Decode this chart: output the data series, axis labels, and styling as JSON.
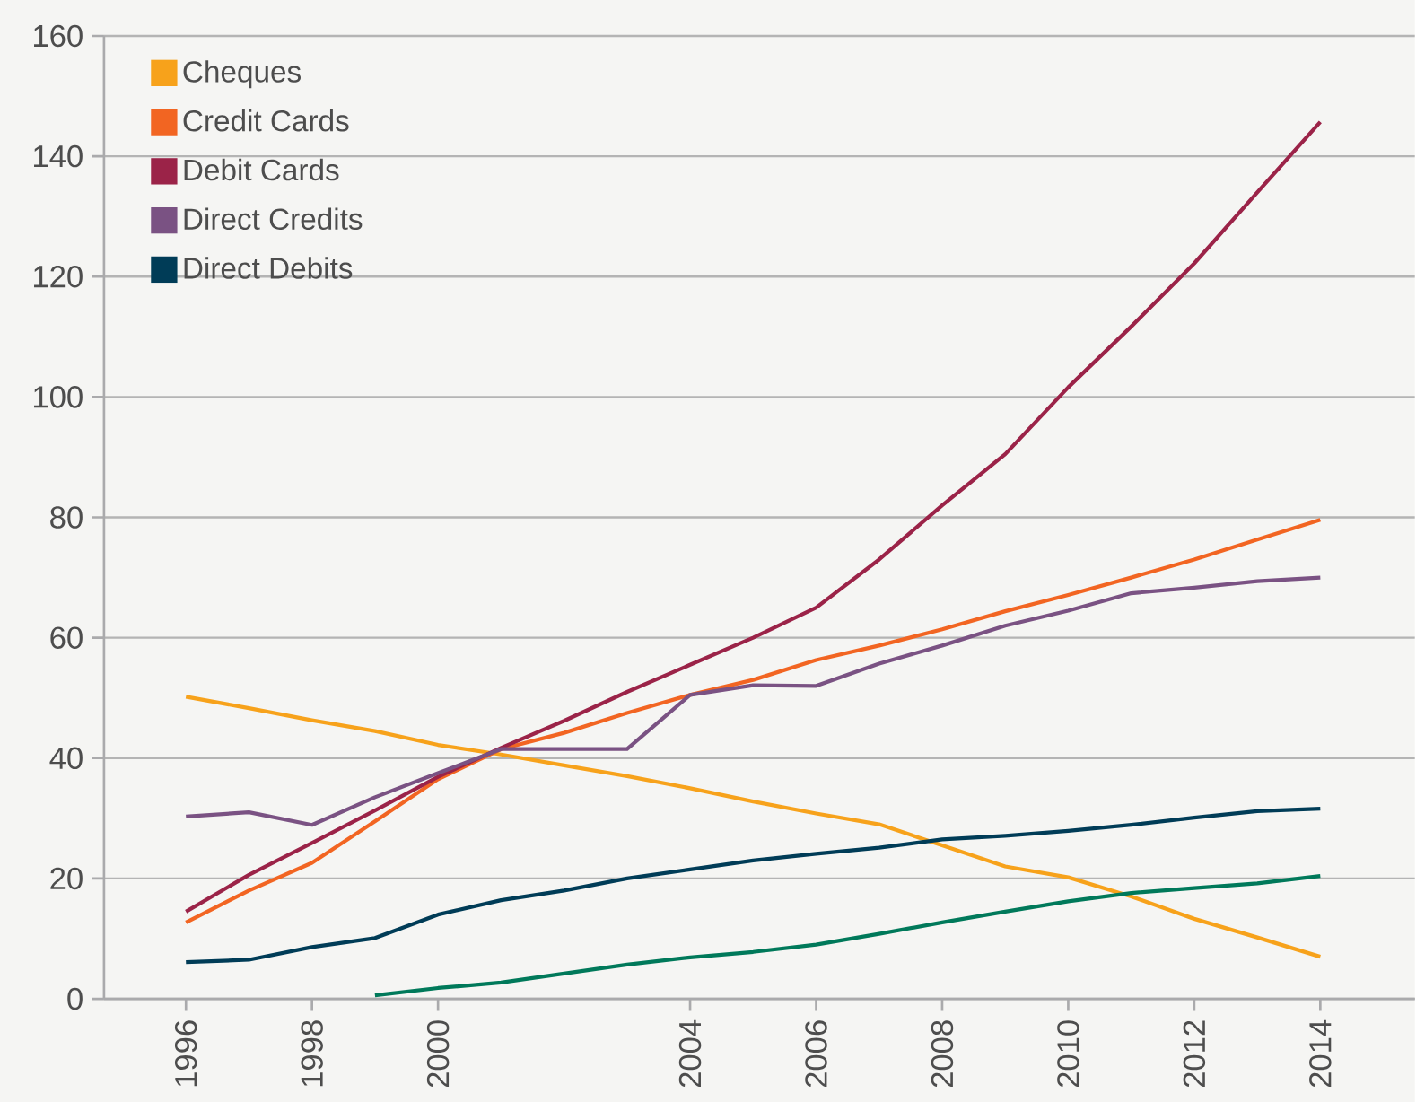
{
  "chart_data": {
    "type": "line",
    "x": [
      1996,
      1997,
      1998,
      1999,
      2000,
      2001,
      2002,
      2003,
      2004,
      2005,
      2006,
      2007,
      2008,
      2009,
      2010,
      2011,
      2012,
      2013,
      2014
    ],
    "series": [
      {
        "name": "Cheques",
        "color": "#f7a21b",
        "values": [
          50.2,
          48.3,
          46.3,
          44.5,
          42.2,
          40.6,
          38.8,
          37.0,
          35.0,
          32.8,
          30.8,
          29.0,
          25.5,
          22.0,
          20.2,
          17.0,
          13.3,
          10.2,
          7.0
        ]
      },
      {
        "name": "Credit Cards",
        "color": "#f26522",
        "values": [
          12.7,
          18.0,
          22.6,
          29.5,
          36.5,
          41.5,
          44.2,
          47.5,
          50.5,
          53.0,
          56.3,
          58.7,
          61.4,
          64.4,
          67.1,
          70.0,
          73.0,
          76.3,
          79.6
        ]
      },
      {
        "name": "Debit Cards",
        "color": "#9b2348",
        "values": [
          14.5,
          20.6,
          25.9,
          31.3,
          36.9,
          41.7,
          46.2,
          51.0,
          55.5,
          60.0,
          65.0,
          73.0,
          82.0,
          90.5,
          101.6,
          111.7,
          122.2,
          134.0,
          145.7
        ]
      },
      {
        "name": "Direct Credits",
        "color": "#7a5283",
        "values": [
          30.3,
          31.0,
          28.9,
          33.5,
          37.5,
          41.5,
          41.5,
          41.5,
          50.5,
          52.1,
          52.0,
          55.7,
          58.7,
          62.0,
          64.5,
          67.4,
          68.3,
          69.4,
          70.0
        ]
      },
      {
        "name": "Direct Debits",
        "color": "#003c57",
        "values": [
          6.1,
          6.5,
          8.6,
          10.1,
          14.0,
          16.4,
          18.0,
          20.0,
          21.5,
          23.0,
          24.1,
          25.1,
          26.5,
          27.1,
          27.9,
          28.9,
          30.1,
          31.2,
          31.6
        ]
      },
      {
        "color": "#00795a",
        "values": [
          null,
          null,
          null,
          0.6,
          1.8,
          2.7,
          4.2,
          5.7,
          6.9,
          7.8,
          9.0,
          10.8,
          12.7,
          14.5,
          16.2,
          17.6,
          18.4,
          19.2,
          20.4
        ]
      }
    ],
    "xlim": [
      1994.7,
      2015.5
    ],
    "xticks": [
      1996,
      1998,
      2000,
      2004,
      2006,
      2008,
      2010,
      2012,
      2014
    ],
    "ylim": [
      0,
      160
    ],
    "yticks": [
      0,
      20,
      40,
      60,
      80,
      100,
      120,
      140,
      160
    ],
    "grid": "y",
    "legend": "top left"
  }
}
